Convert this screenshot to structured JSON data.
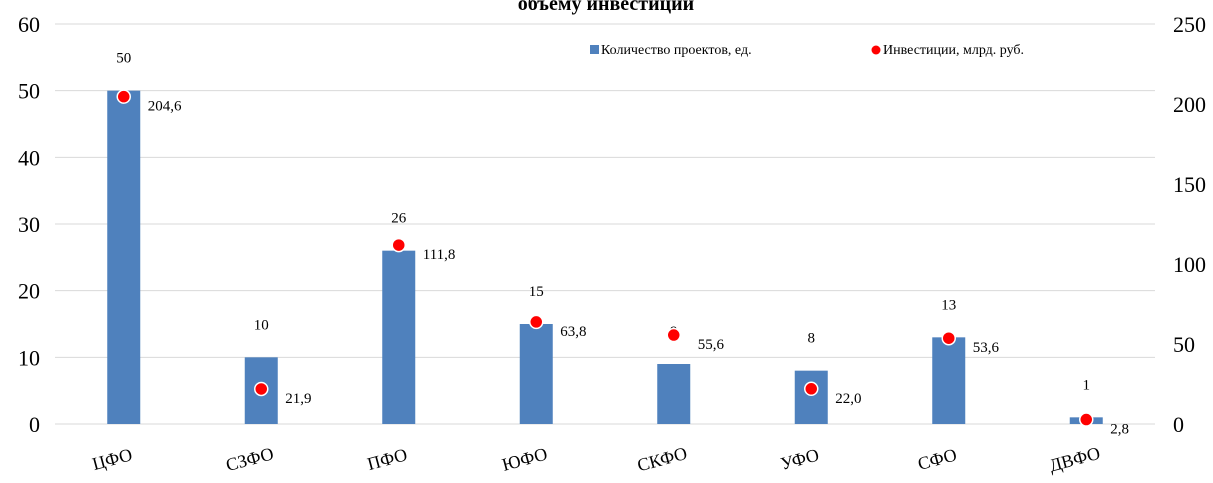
{
  "chart_data": {
    "type": "bar",
    "title": "объему инвестиций",
    "categories": [
      "ЦФО",
      "СЗФО",
      "ПФО",
      "ЮФО",
      "СКФО",
      "УФО",
      "СФО",
      "ДВФО"
    ],
    "series": [
      {
        "name": "Количество проектов, ед.",
        "type": "bar",
        "axis": "left",
        "color": "#4f81bd",
        "values": [
          50,
          10,
          26,
          15,
          9,
          8,
          13,
          1
        ],
        "labels": [
          "50",
          "10",
          "26",
          "15",
          "9",
          "8",
          "13",
          "1"
        ]
      },
      {
        "name": "Инвестиции, млрд. руб.",
        "type": "scatter",
        "axis": "right",
        "color": "#ff0000",
        "values": [
          204.6,
          21.9,
          111.8,
          63.8,
          55.6,
          22.0,
          53.6,
          2.8
        ],
        "labels": [
          "204,6",
          "21,9",
          "111,8",
          "63,8",
          "55,6",
          "22,0",
          "53,6",
          "2,8"
        ]
      }
    ],
    "ylim_left": [
      0,
      60
    ],
    "yticks_left": [
      "0",
      "10",
      "20",
      "30",
      "40",
      "50",
      "60"
    ],
    "ylim_right": [
      0,
      250
    ],
    "yticks_right": [
      "0",
      "50",
      "100",
      "150",
      "200",
      "250"
    ],
    "grid": true,
    "legend": "top-right"
  }
}
